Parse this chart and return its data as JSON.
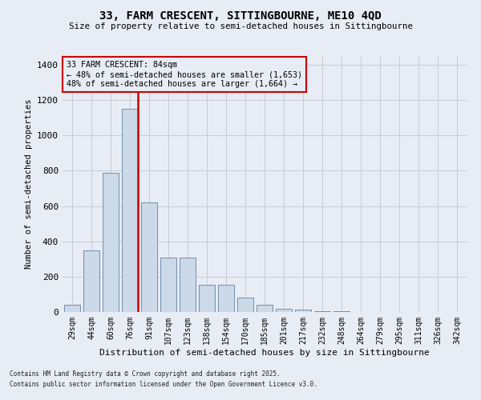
{
  "title_line1": "33, FARM CRESCENT, SITTINGBOURNE, ME10 4QD",
  "title_line2": "Size of property relative to semi-detached houses in Sittingbourne",
  "xlabel": "Distribution of semi-detached houses by size in Sittingbourne",
  "ylabel": "Number of semi-detached properties",
  "categories": [
    "29sqm",
    "44sqm",
    "60sqm",
    "76sqm",
    "91sqm",
    "107sqm",
    "123sqm",
    "138sqm",
    "154sqm",
    "170sqm",
    "185sqm",
    "201sqm",
    "217sqm",
    "232sqm",
    "248sqm",
    "264sqm",
    "279sqm",
    "295sqm",
    "311sqm",
    "326sqm",
    "342sqm"
  ],
  "values": [
    40,
    350,
    790,
    1150,
    620,
    310,
    310,
    155,
    155,
    80,
    40,
    20,
    15,
    5,
    3,
    2,
    1,
    1,
    0,
    0,
    0
  ],
  "bar_color": "#ccd9e8",
  "bar_edge_color": "#7090b0",
  "highlight_bar_index": 3,
  "highlight_color": "#cc0000",
  "ylim": [
    0,
    1450
  ],
  "yticks": [
    0,
    200,
    400,
    600,
    800,
    1000,
    1200,
    1400
  ],
  "annotation_title": "33 FARM CRESCENT: 84sqm",
  "annotation_line2": "← 48% of semi-detached houses are smaller (1,653)",
  "annotation_line3": "48% of semi-detached houses are larger (1,664) →",
  "annotation_box_color": "#cc0000",
  "grid_color": "#c5cdd8",
  "background_color": "#e8ecf4",
  "footnote1": "Contains HM Land Registry data © Crown copyright and database right 2025.",
  "footnote2": "Contains public sector information licensed under the Open Government Licence v3.0."
}
